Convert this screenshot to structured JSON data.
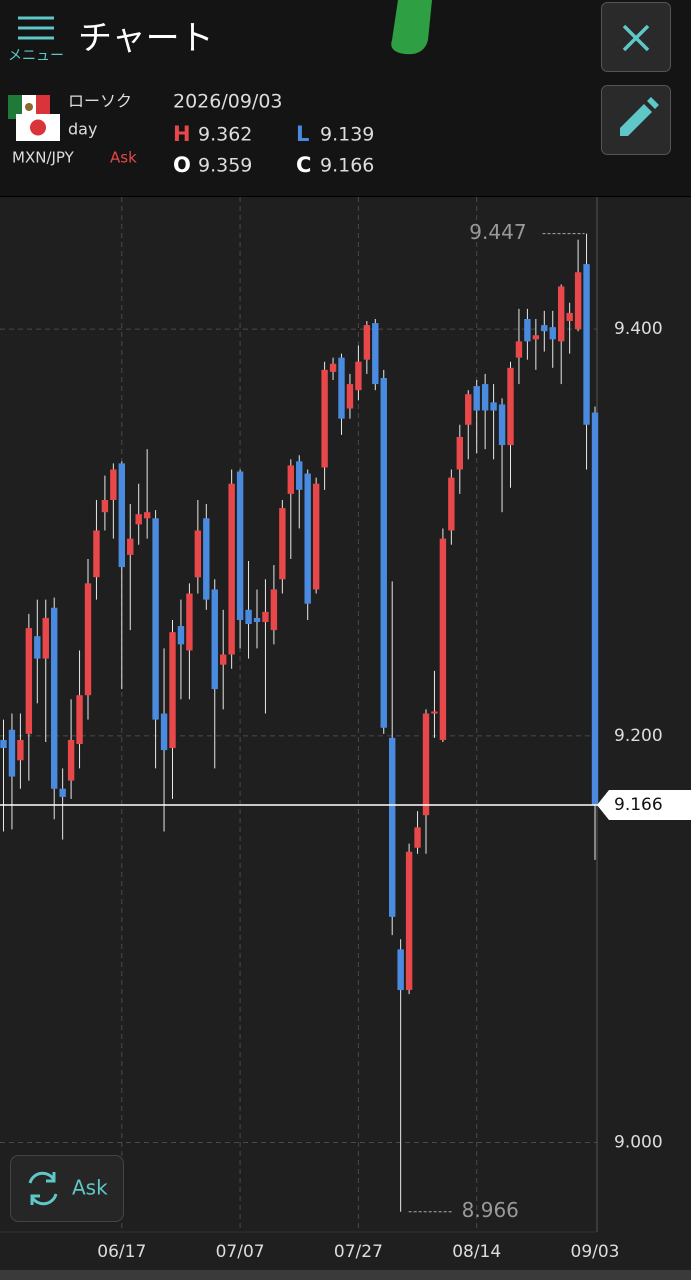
{
  "header": {
    "menu": "メニュー",
    "title": "チャート",
    "chart_style": "ローソク",
    "period": "day",
    "symbol": "MXN/JPY",
    "side": "Ask",
    "date": "2026/09/03",
    "high_label": "H",
    "low_label": "L",
    "open_label": "O",
    "close_label": "C",
    "side_button": "Ask"
  },
  "chart_data": {
    "type": "candlestick",
    "categories": [
      null,
      null,
      null,
      null,
      null,
      null,
      null,
      null,
      null,
      null,
      null,
      null,
      null,
      null,
      "06/17",
      null,
      null,
      null,
      null,
      null,
      null,
      null,
      null,
      null,
      null,
      null,
      null,
      null,
      "07/07",
      null,
      null,
      null,
      null,
      null,
      null,
      null,
      null,
      null,
      null,
      null,
      null,
      null,
      "07/27",
      null,
      null,
      null,
      null,
      null,
      null,
      null,
      null,
      null,
      null,
      null,
      null,
      null,
      "08/14",
      null,
      null,
      null,
      null,
      null,
      null,
      null,
      null,
      null,
      null,
      null,
      null,
      null,
      "09/03"
    ],
    "open": [
      9.198,
      9.203,
      9.188,
      9.201,
      9.249,
      9.238,
      9.263,
      9.174,
      9.178,
      9.196,
      9.22,
      9.278,
      9.31,
      9.316,
      9.334,
      9.289,
      9.304,
      9.307,
      9.307,
      9.211,
      9.194,
      9.254,
      9.242,
      9.278,
      9.307,
      9.272,
      9.235,
      9.24,
      9.33,
      9.262,
      9.258,
      9.256,
      9.252,
      9.277,
      9.319,
      9.335,
      9.329,
      9.272,
      9.332,
      9.379,
      9.386,
      9.361,
      9.37,
      9.385,
      9.403,
      9.376,
      9.199,
      9.095,
      9.075,
      9.145,
      9.161,
      9.211,
      9.198,
      9.301,
      9.331,
      9.353,
      9.372,
      9.373,
      9.364,
      9.363,
      9.343,
      9.386,
      9.405,
      9.395,
      9.402,
      9.401,
      9.394,
      9.404,
      9.4,
      9.432,
      9.359
    ],
    "high": [
      9.208,
      9.211,
      9.211,
      9.26,
      9.267,
      9.267,
      9.268,
      9.184,
      9.218,
      9.242,
      9.287,
      9.316,
      9.328,
      9.334,
      9.335,
      9.314,
      9.324,
      9.341,
      9.311,
      9.243,
      9.257,
      9.267,
      9.275,
      9.316,
      9.314,
      9.277,
      9.262,
      9.331,
      9.331,
      9.286,
      9.272,
      9.277,
      9.284,
      9.316,
      9.336,
      9.338,
      9.331,
      9.327,
      9.384,
      9.386,
      9.388,
      9.378,
      9.392,
      9.404,
      9.405,
      9.38,
      9.276,
      9.1,
      9.147,
      9.163,
      9.213,
      9.232,
      9.302,
      9.331,
      9.353,
      9.37,
      9.375,
      9.378,
      9.373,
      9.366,
      9.384,
      9.41,
      9.41,
      9.405,
      9.409,
      9.409,
      9.422,
      9.413,
      9.444,
      9.447,
      9.362
    ],
    "low": [
      9.153,
      9.154,
      9.174,
      9.178,
      9.216,
      9.197,
      9.159,
      9.149,
      9.169,
      9.184,
      9.208,
      9.267,
      9.301,
      9.297,
      9.223,
      9.252,
      9.294,
      9.297,
      9.184,
      9.153,
      9.169,
      9.218,
      9.218,
      9.27,
      9.262,
      9.184,
      9.213,
      9.233,
      9.243,
      9.238,
      9.243,
      9.211,
      9.245,
      9.27,
      9.287,
      9.302,
      9.257,
      9.27,
      9.321,
      9.375,
      9.348,
      9.356,
      9.365,
      9.378,
      9.37,
      9.201,
      9.102,
      8.966,
      9.073,
      9.142,
      9.142,
      9.199,
      9.197,
      9.294,
      9.319,
      9.336,
      9.339,
      9.341,
      9.336,
      9.31,
      9.322,
      9.373,
      9.385,
      9.38,
      9.389,
      9.381,
      9.373,
      9.388,
      9.399,
      9.331,
      9.139
    ],
    "close": [
      9.194,
      9.18,
      9.198,
      9.253,
      9.238,
      9.258,
      9.174,
      9.17,
      9.198,
      9.22,
      9.275,
      9.301,
      9.316,
      9.331,
      9.283,
      9.297,
      9.309,
      9.31,
      9.208,
      9.193,
      9.251,
      9.245,
      9.27,
      9.301,
      9.267,
      9.223,
      9.24,
      9.324,
      9.257,
      9.255,
      9.256,
      9.261,
      9.272,
      9.312,
      9.333,
      9.321,
      9.265,
      9.324,
      9.38,
      9.383,
      9.356,
      9.373,
      9.384,
      9.402,
      9.373,
      9.204,
      9.111,
      9.075,
      9.143,
      9.155,
      9.211,
      9.212,
      9.297,
      9.327,
      9.347,
      9.368,
      9.36,
      9.36,
      9.36,
      9.343,
      9.381,
      9.394,
      9.394,
      9.397,
      9.399,
      9.395,
      9.421,
      9.408,
      9.428,
      9.353,
      9.166
    ],
    "up_color": "#e8484a",
    "down_color": "#4a8be0",
    "ylim": [
      8.957,
      9.465
    ],
    "yticks": [
      {
        "value": 9,
        "label": "9.000"
      },
      {
        "value": 9.2,
        "label": "9.200"
      },
      {
        "value": 9.4,
        "label": "9.400"
      }
    ],
    "grid": true
  }
}
